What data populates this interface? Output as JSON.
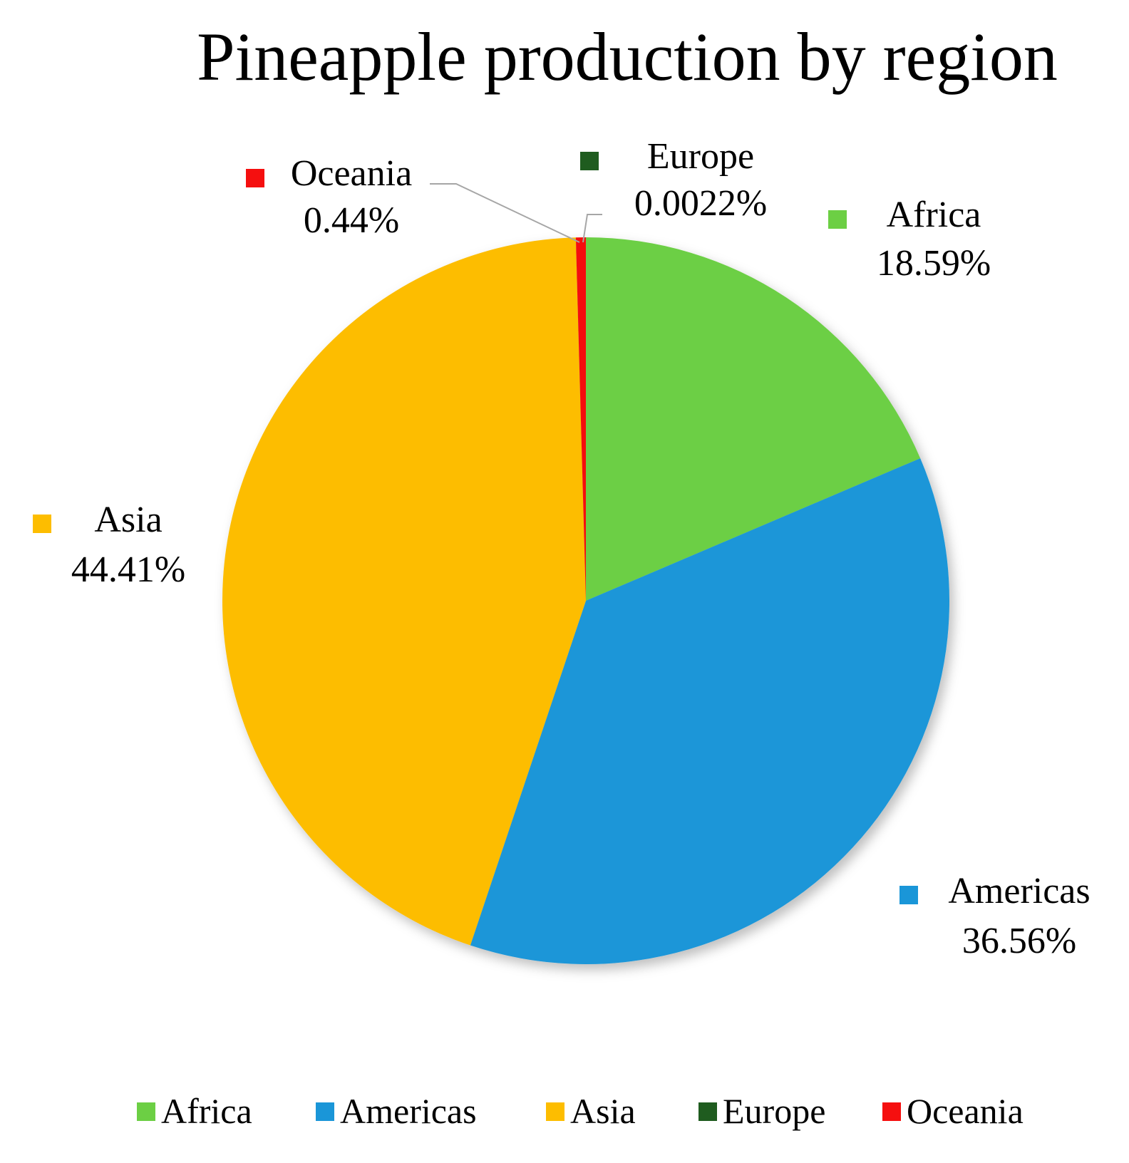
{
  "chart_data": {
    "type": "pie",
    "title": "Pineapple production by region",
    "slices": [
      {
        "name": "Africa",
        "value": 18.59,
        "label": "18.59%",
        "color": "#6ccf44"
      },
      {
        "name": "Americas",
        "value": 36.56,
        "label": "36.56%",
        "color": "#1a96d8"
      },
      {
        "name": "Asia",
        "value": 44.41,
        "label": "44.41%",
        "color": "#fdbd00"
      },
      {
        "name": "Europe",
        "value": 0.0022,
        "label": "0.0022%",
        "color": "#1f5c1f"
      },
      {
        "name": "Oceania",
        "value": 0.44,
        "label": "0.44%",
        "color": "#f50f0f"
      }
    ],
    "legend": {
      "position": "bottom",
      "items": [
        "Africa",
        "Americas",
        "Asia",
        "Europe",
        "Oceania"
      ]
    },
    "start_angle_deg": 0,
    "direction": "clockwise"
  }
}
